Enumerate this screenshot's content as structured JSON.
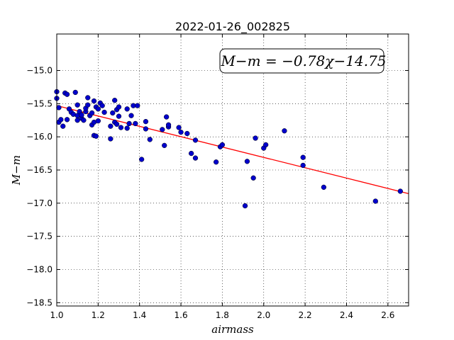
{
  "chart_data": {
    "type": "scatter",
    "title": "2022-01-26_002825",
    "xlabel": "airmass",
    "ylabel": "M−m",
    "xlim": [
      1.0,
      2.7
    ],
    "ylim": [
      -18.55,
      -14.45
    ],
    "y_inverted": true,
    "x_ticks": [
      1.0,
      1.2,
      1.4,
      1.6,
      1.8,
      2.0,
      2.2,
      2.4,
      2.6
    ],
    "x_tick_labels": [
      "1.0",
      "1.2",
      "1.4",
      "1.6",
      "1.8",
      "2.0",
      "2.2",
      "2.4",
      "2.6"
    ],
    "y_ticks": [
      -15.0,
      -15.5,
      -16.0,
      -16.5,
      -17.0,
      -17.5,
      -18.0,
      -18.5
    ],
    "y_tick_labels": [
      "−15.0",
      "−15.5",
      "−16.0",
      "−16.5",
      "−17.0",
      "−17.5",
      "−18.0",
      "−18.5"
    ],
    "grid": true,
    "annotation": "M−m = −0.78χ−14.75",
    "fit_line": {
      "slope": -0.78,
      "intercept": -14.75,
      "color": "#ff0000"
    },
    "point_color": "#0000cc",
    "points": [
      {
        "x": 1.0,
        "y": -15.32
      },
      {
        "x": 1.0,
        "y": -15.42
      },
      {
        "x": 1.01,
        "y": -15.78
      },
      {
        "x": 1.01,
        "y": -15.56
      },
      {
        "x": 1.02,
        "y": -15.74
      },
      {
        "x": 1.03,
        "y": -15.84
      },
      {
        "x": 1.04,
        "y": -15.34
      },
      {
        "x": 1.05,
        "y": -15.36
      },
      {
        "x": 1.05,
        "y": -15.74
      },
      {
        "x": 1.06,
        "y": -15.58
      },
      {
        "x": 1.07,
        "y": -15.63
      },
      {
        "x": 1.08,
        "y": -15.66
      },
      {
        "x": 1.09,
        "y": -15.33
      },
      {
        "x": 1.1,
        "y": -15.52
      },
      {
        "x": 1.1,
        "y": -15.68
      },
      {
        "x": 1.1,
        "y": -15.75
      },
      {
        "x": 1.11,
        "y": -15.62
      },
      {
        "x": 1.12,
        "y": -15.72
      },
      {
        "x": 1.12,
        "y": -15.67
      },
      {
        "x": 1.13,
        "y": -15.75
      },
      {
        "x": 1.14,
        "y": -15.62
      },
      {
        "x": 1.14,
        "y": -15.57
      },
      {
        "x": 1.15,
        "y": -15.41
      },
      {
        "x": 1.15,
        "y": -15.52
      },
      {
        "x": 1.16,
        "y": -15.68
      },
      {
        "x": 1.17,
        "y": -15.64
      },
      {
        "x": 1.17,
        "y": -15.82
      },
      {
        "x": 1.18,
        "y": -15.46
      },
      {
        "x": 1.18,
        "y": -15.78
      },
      {
        "x": 1.18,
        "y": -15.98
      },
      {
        "x": 1.19,
        "y": -15.99
      },
      {
        "x": 1.19,
        "y": -15.55
      },
      {
        "x": 1.2,
        "y": -15.58
      },
      {
        "x": 1.2,
        "y": -15.76
      },
      {
        "x": 1.21,
        "y": -15.49
      },
      {
        "x": 1.22,
        "y": -15.53
      },
      {
        "x": 1.23,
        "y": -15.63
      },
      {
        "x": 1.26,
        "y": -15.84
      },
      {
        "x": 1.26,
        "y": -16.03
      },
      {
        "x": 1.27,
        "y": -15.64
      },
      {
        "x": 1.28,
        "y": -15.45
      },
      {
        "x": 1.28,
        "y": -15.78
      },
      {
        "x": 1.29,
        "y": -15.59
      },
      {
        "x": 1.29,
        "y": -15.81
      },
      {
        "x": 1.3,
        "y": -15.55
      },
      {
        "x": 1.3,
        "y": -15.69
      },
      {
        "x": 1.31,
        "y": -15.86
      },
      {
        "x": 1.34,
        "y": -15.58
      },
      {
        "x": 1.34,
        "y": -15.87
      },
      {
        "x": 1.35,
        "y": -15.8
      },
      {
        "x": 1.36,
        "y": -15.68
      },
      {
        "x": 1.37,
        "y": -15.53
      },
      {
        "x": 1.38,
        "y": -15.8
      },
      {
        "x": 1.39,
        "y": -15.53
      },
      {
        "x": 1.41,
        "y": -16.34
      },
      {
        "x": 1.43,
        "y": -15.77
      },
      {
        "x": 1.43,
        "y": -15.88
      },
      {
        "x": 1.45,
        "y": -16.04
      },
      {
        "x": 1.51,
        "y": -15.89
      },
      {
        "x": 1.52,
        "y": -16.13
      },
      {
        "x": 1.53,
        "y": -15.7
      },
      {
        "x": 1.54,
        "y": -15.85
      },
      {
        "x": 1.54,
        "y": -15.82
      },
      {
        "x": 1.59,
        "y": -15.86
      },
      {
        "x": 1.6,
        "y": -15.93
      },
      {
        "x": 1.63,
        "y": -15.95
      },
      {
        "x": 1.65,
        "y": -16.25
      },
      {
        "x": 1.67,
        "y": -16.05
      },
      {
        "x": 1.67,
        "y": -16.32
      },
      {
        "x": 1.77,
        "y": -16.38
      },
      {
        "x": 1.79,
        "y": -16.15
      },
      {
        "x": 1.8,
        "y": -16.12
      },
      {
        "x": 1.91,
        "y": -17.04
      },
      {
        "x": 1.92,
        "y": -16.37
      },
      {
        "x": 1.95,
        "y": -16.62
      },
      {
        "x": 1.96,
        "y": -16.02
      },
      {
        "x": 2.0,
        "y": -16.17
      },
      {
        "x": 2.01,
        "y": -16.12
      },
      {
        "x": 2.1,
        "y": -15.91
      },
      {
        "x": 2.19,
        "y": -16.31
      },
      {
        "x": 2.19,
        "y": -16.43
      },
      {
        "x": 2.29,
        "y": -16.76
      },
      {
        "x": 2.54,
        "y": -16.97
      },
      {
        "x": 2.66,
        "y": -16.82
      }
    ]
  }
}
